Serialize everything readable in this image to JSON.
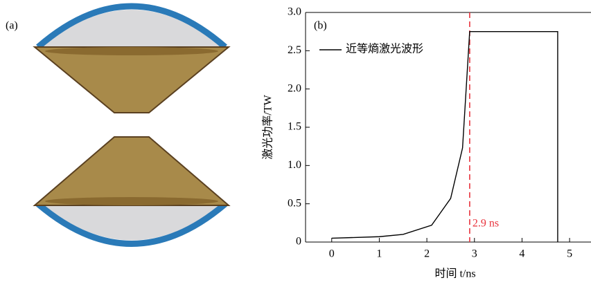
{
  "panel_a": {
    "label": "(a)"
  },
  "chart_data": {
    "type": "line",
    "panel_label": "(b)",
    "xlabel": "时间 t/ns",
    "ylabel": "激光功率/TW",
    "xlim": [
      -0.55,
      5.45
    ],
    "ylim": [
      0,
      3
    ],
    "xticks": [
      0,
      1,
      2,
      3,
      4,
      5
    ],
    "yticks": [
      0,
      0.5,
      {
        "value": 1,
        "label": "1.0"
      },
      1.5,
      {
        "value": 2,
        "label": "2.0"
      },
      2.5,
      {
        "value": 3,
        "label": "3.0"
      }
    ],
    "legend": "upper left",
    "series": [
      {
        "name": "近等熵激光波形",
        "color": "#000000",
        "x": [
          0,
          1,
          1.5,
          2.1,
          2.5,
          2.75,
          2.9,
          4.75,
          4.75
        ],
        "values": [
          0.05,
          0.07,
          0.1,
          0.22,
          0.57,
          1.23,
          2.75,
          2.75,
          0
        ]
      }
    ],
    "vline": {
      "x": 2.9,
      "label": "2.9 ns",
      "color": "#e8323c"
    }
  }
}
